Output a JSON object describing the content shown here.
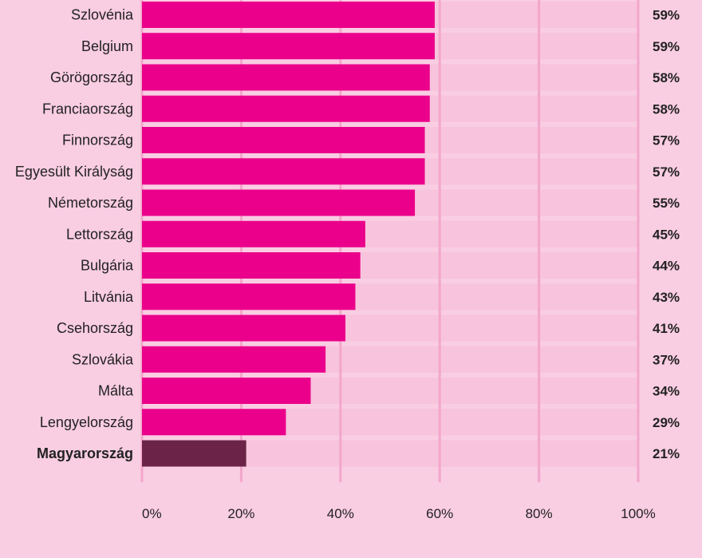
{
  "chart_data": {
    "type": "bar",
    "orientation": "horizontal",
    "categories": [
      "Szlovénia",
      "Belgium",
      "Görögország",
      "Franciaország",
      "Finnország",
      "Egyesült Királyság",
      "Németország",
      "Lettország",
      "Bulgária",
      "Litvánia",
      "Csehország",
      "Szlovákia",
      "Málta",
      "Lengyelország",
      "Magyarország"
    ],
    "values": [
      59,
      59,
      58,
      58,
      57,
      57,
      55,
      45,
      44,
      43,
      41,
      37,
      34,
      29,
      21
    ],
    "value_labels": [
      "59%",
      "59%",
      "58%",
      "58%",
      "57%",
      "57%",
      "55%",
      "45%",
      "44%",
      "43%",
      "41%",
      "37%",
      "34%",
      "29%",
      "21%"
    ],
    "highlight_category": "Magyarország",
    "xlim": [
      0,
      100
    ],
    "x_ticks": [
      0,
      20,
      40,
      60,
      80,
      100
    ],
    "x_tick_labels": [
      "0%",
      "20%",
      "40%",
      "60%",
      "80%",
      "100%"
    ],
    "grid": true,
    "colors": {
      "background": "#f9cde2",
      "track": "#f8c3dc",
      "grid": "#f3a6cb",
      "bar": "#eb008b",
      "highlight": "#6b2447",
      "text": "#222222"
    }
  }
}
